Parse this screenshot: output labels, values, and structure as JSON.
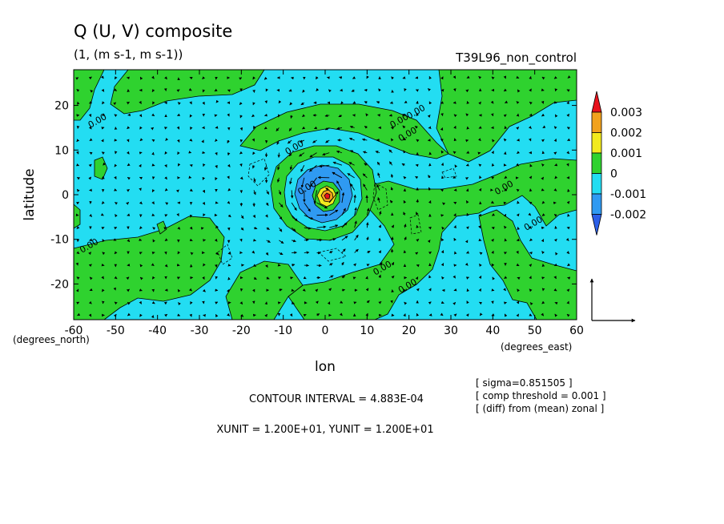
{
  "chart_data": {
    "type": "heatmap",
    "title": "Q (U, V) composite",
    "subtitle": "(1, (m s-1, m s-1))",
    "experiment": "T39L96_non_control",
    "xlabel": "lon",
    "ylabel": "latitude",
    "x_unit_label": "(degrees_east)",
    "y_unit_label": "(degrees_north)",
    "xlim": [
      -60,
      60
    ],
    "ylim": [
      -28,
      28
    ],
    "x_ticks": [
      -60,
      -50,
      -40,
      -30,
      -20,
      -10,
      0,
      10,
      20,
      30,
      40,
      50,
      60
    ],
    "x_tick_labels": [
      "-60",
      "-50",
      "-40",
      "-30",
      "-20",
      "-10",
      "0",
      "10",
      "20",
      "30",
      "40",
      "50",
      "60"
    ],
    "y_ticks": [
      -20,
      -10,
      0,
      10,
      20
    ],
    "y_tick_labels": [
      "-20",
      "-10",
      "0",
      "10",
      "20"
    ],
    "colorbar": {
      "labels": [
        "0.003",
        "0.002",
        "0.001",
        "0",
        "-0.001",
        "-0.002"
      ],
      "colors": [
        "#e8121c",
        "#f2a21d",
        "#f2ea1e",
        "#2fd22f",
        "#23ddf2",
        "#2f9af2",
        "#2b5fe8"
      ]
    },
    "contour_label_text": "0.00",
    "contour_labels": [
      {
        "x": -54,
        "y": 16
      },
      {
        "x": -56,
        "y": -12
      },
      {
        "x": -7,
        "y": 10
      },
      {
        "x": 18,
        "y": 16
      },
      {
        "x": 20,
        "y": 13
      },
      {
        "x": 22,
        "y": 18
      },
      {
        "x": 43,
        "y": 1
      },
      {
        "x": 50,
        "y": -7
      },
      {
        "x": 20,
        "y": -21
      },
      {
        "x": 14,
        "y": -17
      },
      {
        "x": -4,
        "y": 1
      }
    ],
    "contour_interval": "CONTOUR INTERVAL = 4.883E-04",
    "units_line": "XUNIT = 1.200E+01, YUNIT = 1.200E+01",
    "notes": [
      "[ sigma=0.851505 ]",
      "[ comp threshold = 0.001 ]",
      "[ (diff) from (mean) zonal ]"
    ],
    "features": {
      "center": {
        "lon": 0,
        "lat": 0,
        "extremum": 0.003
      },
      "ring_negative_radius_deg": 7,
      "green_arms": "spiral bands emanating from the center",
      "background": "mostly 0 to -0.001 (cyan) with 0 to 0.001 (green) patches"
    },
    "vector_reference": {
      "x_unit": 12,
      "y_unit": 12
    }
  }
}
